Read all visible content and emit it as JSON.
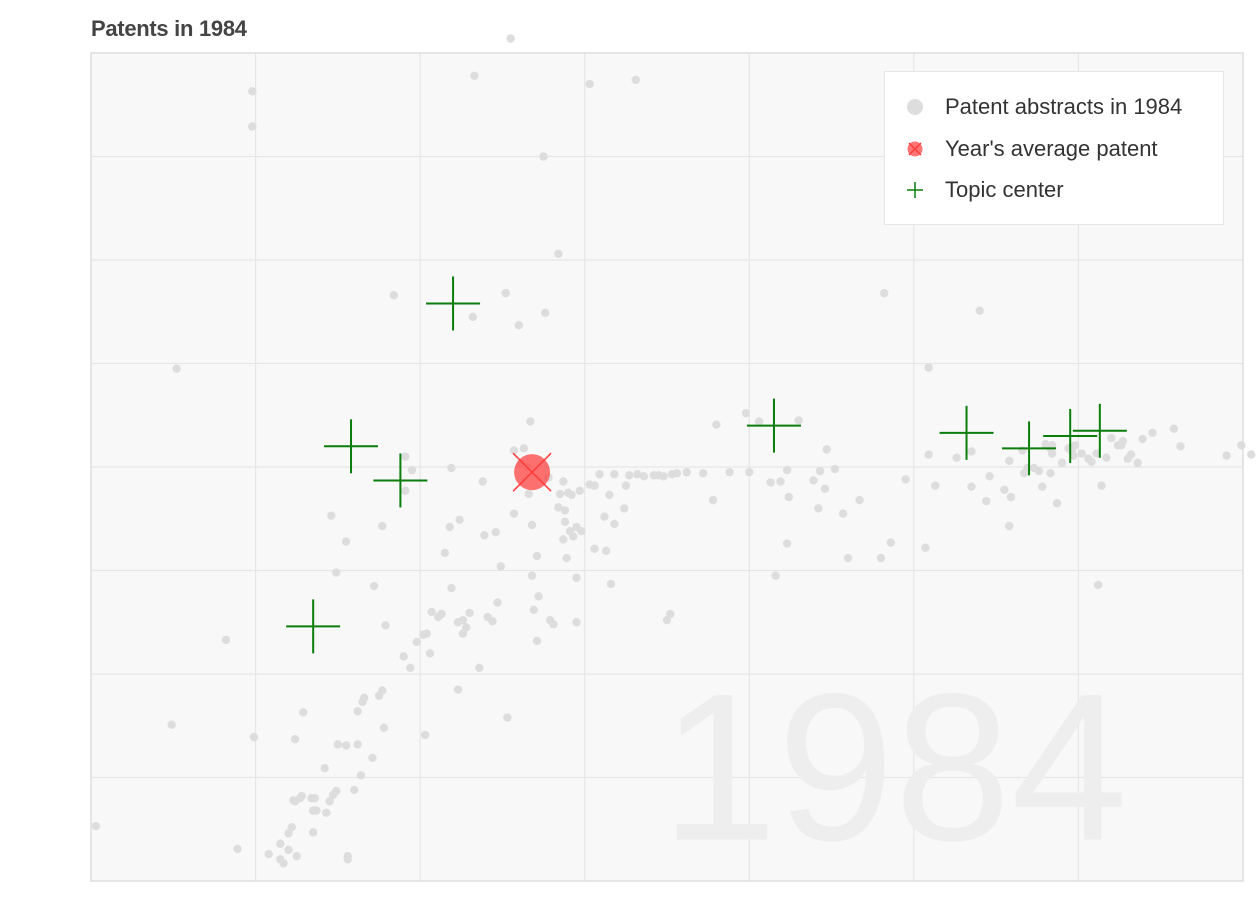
{
  "title": "Patents in 1984",
  "chart_data": {
    "type": "scatter",
    "title": "Patents in 1984",
    "watermark": "1984",
    "grid": true,
    "legend_position": "top-right",
    "xlim": [
      0,
      7
    ],
    "ylim": [
      0,
      8
    ],
    "tick_labels_visible": false,
    "colors": {
      "patents": "#dddddd",
      "average": "#ff3b3b",
      "topic_center": "#0a7d0a",
      "plot_background": "#f8f8f8",
      "grid": "#e6e6e6",
      "watermark": "#eeeeee"
    },
    "series": [
      {
        "name": "Patent abstracts in 1984",
        "marker": "dot",
        "points": [
          [
            0.03,
            0.53
          ],
          [
            0.49,
            1.51
          ],
          [
            0.52,
            4.95
          ],
          [
            0.82,
            2.33
          ],
          [
            0.98,
            7.29
          ],
          [
            0.98,
            7.63
          ],
          [
            0.99,
            1.39
          ],
          [
            0.89,
            0.31
          ],
          [
            1.08,
            0.26
          ],
          [
            1.15,
            0.36
          ],
          [
            1.15,
            0.21
          ],
          [
            1.17,
            0.17
          ],
          [
            1.2,
            0.46
          ],
          [
            1.2,
            0.3
          ],
          [
            1.22,
            0.52
          ],
          [
            1.23,
            0.78
          ],
          [
            1.24,
            1.37
          ],
          [
            1.24,
            0.77
          ],
          [
            1.25,
            0.24
          ],
          [
            1.27,
            0.8
          ],
          [
            1.28,
            0.82
          ],
          [
            1.29,
            1.63
          ],
          [
            1.34,
            0.8
          ],
          [
            1.35,
            0.68
          ],
          [
            1.36,
            0.8
          ],
          [
            1.35,
            0.47
          ],
          [
            1.37,
            0.68
          ],
          [
            1.42,
            1.09
          ],
          [
            1.43,
            0.66
          ],
          [
            1.45,
            0.77
          ],
          [
            1.47,
            0.83
          ],
          [
            1.49,
            0.87
          ],
          [
            1.5,
            1.32
          ],
          [
            1.55,
            1.31
          ],
          [
            1.46,
            3.53
          ],
          [
            1.49,
            2.98
          ],
          [
            1.55,
            3.28
          ],
          [
            1.56,
            0.21
          ],
          [
            1.56,
            0.24
          ],
          [
            1.62,
            1.32
          ],
          [
            1.6,
            0.88
          ],
          [
            1.62,
            1.64
          ],
          [
            1.65,
            1.73
          ],
          [
            1.66,
            1.77
          ],
          [
            1.64,
            1.02
          ],
          [
            1.71,
            1.19
          ],
          [
            1.72,
            2.85
          ],
          [
            1.75,
            1.79
          ],
          [
            1.77,
            3.43
          ],
          [
            1.77,
            1.84
          ],
          [
            1.78,
            1.48
          ],
          [
            1.79,
            2.47
          ],
          [
            1.84,
            5.66
          ],
          [
            1.9,
            2.17
          ],
          [
            1.91,
            3.77
          ],
          [
            1.91,
            4.1
          ],
          [
            1.94,
            2.06
          ],
          [
            1.98,
            2.31
          ],
          [
            1.95,
            3.97
          ],
          [
            2.02,
            2.38
          ],
          [
            2.04,
            2.39
          ],
          [
            2.03,
            1.41
          ],
          [
            2.06,
            2.2
          ],
          [
            2.07,
            2.6
          ],
          [
            2.11,
            2.55
          ],
          [
            2.13,
            2.58
          ],
          [
            2.15,
            3.17
          ],
          [
            2.18,
            3.42
          ],
          [
            2.19,
            2.83
          ],
          [
            2.19,
            3.99
          ],
          [
            2.23,
            2.5
          ],
          [
            2.23,
            1.85
          ],
          [
            2.24,
            3.49
          ],
          [
            2.26,
            2.39
          ],
          [
            2.26,
            2.52
          ],
          [
            2.28,
            2.45
          ],
          [
            2.3,
            2.59
          ],
          [
            2.32,
            5.45
          ],
          [
            2.33,
            7.78
          ],
          [
            2.36,
            2.06
          ],
          [
            2.38,
            3.86
          ],
          [
            2.39,
            3.34
          ],
          [
            2.41,
            2.55
          ],
          [
            2.44,
            2.51
          ],
          [
            2.46,
            3.37
          ],
          [
            2.47,
            2.69
          ],
          [
            2.49,
            3.04
          ],
          [
            2.52,
            5.68
          ],
          [
            2.53,
            1.58
          ],
          [
            2.55,
            8.14
          ],
          [
            2.57,
            4.16
          ],
          [
            2.57,
            3.55
          ],
          [
            2.6,
            5.37
          ],
          [
            2.61,
            4.03
          ],
          [
            2.63,
            4.18
          ],
          [
            2.65,
            4.0
          ],
          [
            2.66,
            3.74
          ],
          [
            2.67,
            4.44
          ],
          [
            2.68,
            2.95
          ],
          [
            2.68,
            3.44
          ],
          [
            2.69,
            2.62
          ],
          [
            2.71,
            3.14
          ],
          [
            2.71,
            2.32
          ],
          [
            2.72,
            2.75
          ],
          [
            2.75,
            7.0
          ],
          [
            2.76,
            5.49
          ],
          [
            2.78,
            3.9
          ],
          [
            2.79,
            2.52
          ],
          [
            2.81,
            2.48
          ],
          [
            2.84,
            6.06
          ],
          [
            2.84,
            3.61
          ],
          [
            2.85,
            3.74
          ],
          [
            2.87,
            3.3
          ],
          [
            2.88,
            3.58
          ],
          [
            2.9,
            3.75
          ],
          [
            2.91,
            3.38
          ],
          [
            2.92,
            3.73
          ],
          [
            2.95,
            2.5
          ],
          [
            2.95,
            2.93
          ],
          [
            2.98,
            3.38
          ],
          [
            3.03,
            7.7
          ],
          [
            3.09,
            3.93
          ],
          [
            2.87,
            3.86
          ],
          [
            2.93,
            3.33
          ],
          [
            2.95,
            3.42
          ],
          [
            2.88,
            3.47
          ],
          [
            2.97,
            3.77
          ],
          [
            3.03,
            3.83
          ],
          [
            2.89,
            3.12
          ],
          [
            3.06,
            3.21
          ],
          [
            3.06,
            3.82
          ],
          [
            3.13,
            3.19
          ],
          [
            3.15,
            3.73
          ],
          [
            3.16,
            2.87
          ],
          [
            3.18,
            3.45
          ],
          [
            3.12,
            3.52
          ],
          [
            3.18,
            3.93
          ],
          [
            3.24,
            3.6
          ],
          [
            3.25,
            3.82
          ],
          [
            3.27,
            3.92
          ],
          [
            3.31,
            7.74
          ],
          [
            3.32,
            3.93
          ],
          [
            3.36,
            3.91
          ],
          [
            3.42,
            3.92
          ],
          [
            3.45,
            3.92
          ],
          [
            3.48,
            3.91
          ],
          [
            3.5,
            2.52
          ],
          [
            3.53,
            3.93
          ],
          [
            3.56,
            3.94
          ],
          [
            3.62,
            3.95
          ],
          [
            3.72,
            3.94
          ],
          [
            3.78,
            3.68
          ],
          [
            3.8,
            4.41
          ],
          [
            3.88,
            3.95
          ],
          [
            4.0,
            3.95
          ],
          [
            4.06,
            4.44
          ],
          [
            4.13,
            3.85
          ],
          [
            4.16,
            2.95
          ],
          [
            4.19,
            3.86
          ],
          [
            4.24,
            3.71
          ],
          [
            4.3,
            4.45
          ],
          [
            4.39,
            3.87
          ],
          [
            4.42,
            3.6
          ],
          [
            4.46,
            3.79
          ],
          [
            4.43,
            3.96
          ],
          [
            4.47,
            4.17
          ],
          [
            4.52,
            3.98
          ],
          [
            4.57,
            3.55
          ],
          [
            4.6,
            3.12
          ],
          [
            4.67,
            3.68
          ],
          [
            4.8,
            3.12
          ],
          [
            4.95,
            3.88
          ],
          [
            5.07,
            3.22
          ],
          [
            5.09,
            4.96
          ],
          [
            5.09,
            4.12
          ],
          [
            5.13,
            3.82
          ],
          [
            5.26,
            4.09
          ],
          [
            5.35,
            3.81
          ],
          [
            5.35,
            4.15
          ],
          [
            5.44,
            3.67
          ],
          [
            5.46,
            3.91
          ],
          [
            5.55,
            3.78
          ],
          [
            5.58,
            4.06
          ],
          [
            5.59,
            3.71
          ],
          [
            5.66,
            4.16
          ],
          [
            5.67,
            3.94
          ],
          [
            5.69,
            3.99
          ],
          [
            5.73,
            3.99
          ],
          [
            5.76,
            3.96
          ],
          [
            5.78,
            3.81
          ],
          [
            5.8,
            4.22
          ],
          [
            5.83,
            4.18
          ],
          [
            5.84,
            4.13
          ],
          [
            5.84,
            4.21
          ],
          [
            5.87,
            3.65
          ],
          [
            5.9,
            4.04
          ],
          [
            5.94,
            4.18
          ],
          [
            5.97,
            4.11
          ],
          [
            5.98,
            4.21
          ],
          [
            6.02,
            4.13
          ],
          [
            6.06,
            4.08
          ],
          [
            6.08,
            4.05
          ],
          [
            6.11,
            4.13
          ],
          [
            6.14,
            3.82
          ],
          [
            6.17,
            4.09
          ],
          [
            6.2,
            4.28
          ],
          [
            6.24,
            4.21
          ],
          [
            6.26,
            4.21
          ],
          [
            6.27,
            4.25
          ],
          [
            6.3,
            4.08
          ],
          [
            6.32,
            4.12
          ],
          [
            6.36,
            4.04
          ],
          [
            6.39,
            4.27
          ],
          [
            6.45,
            4.33
          ],
          [
            6.58,
            4.37
          ],
          [
            6.62,
            4.2
          ],
          [
            6.9,
            4.11
          ],
          [
            6.99,
            4.21
          ],
          [
            7.05,
            4.12
          ],
          [
            5.83,
            3.94
          ],
          [
            5.58,
            3.43
          ],
          [
            5.96,
            4.15
          ],
          [
            6.12,
            2.86
          ],
          [
            5.4,
            5.51
          ],
          [
            4.86,
            3.27
          ],
          [
            4.82,
            5.68
          ],
          [
            4.23,
            3.26
          ],
          [
            4.23,
            3.97
          ],
          [
            3.98,
            4.52
          ],
          [
            3.52,
            2.58
          ]
        ]
      },
      {
        "name": "Year's average patent",
        "marker": "circle-x",
        "points": [
          [
            2.68,
            3.95
          ]
        ]
      },
      {
        "name": "Topic center",
        "marker": "plus",
        "points": [
          [
            2.2,
            5.58
          ],
          [
            1.58,
            4.2
          ],
          [
            1.88,
            3.87
          ],
          [
            1.35,
            2.46
          ],
          [
            4.15,
            4.4
          ],
          [
            5.32,
            4.33
          ],
          [
            5.7,
            4.18
          ],
          [
            5.95,
            4.3
          ],
          [
            6.13,
            4.35
          ]
        ]
      }
    ]
  }
}
